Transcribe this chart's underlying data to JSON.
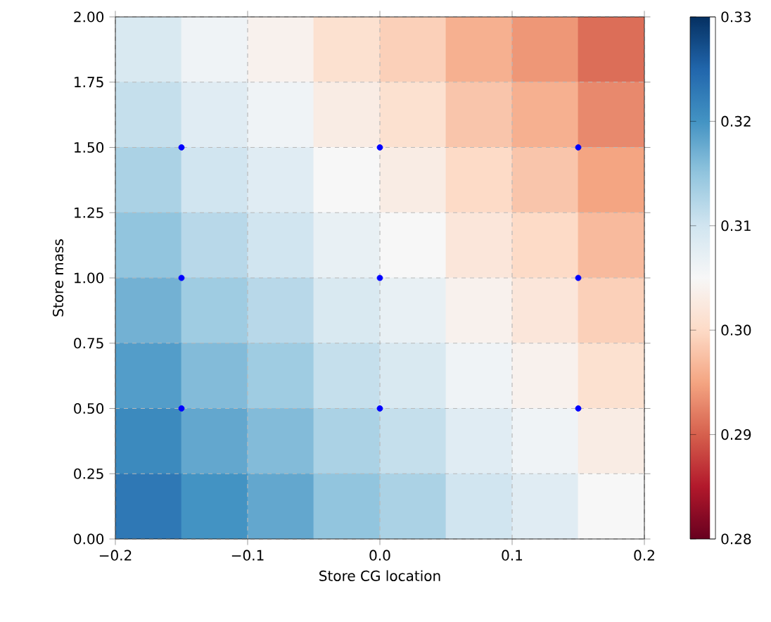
{
  "chart_data": [
    {
      "type": "heatmap",
      "categories": [
        null,
        null,
        null,
        null,
        null,
        null,
        null,
        null
      ],
      "y_categories": [
        null,
        null,
        null,
        null,
        null,
        null,
        null,
        null
      ],
      "cells": [
        [
          0.309,
          0.306,
          0.304,
          0.301,
          0.299,
          0.296,
          0.294,
          0.291
        ],
        [
          0.311,
          0.308,
          0.306,
          0.303,
          0.301,
          0.298,
          0.296,
          0.293
        ],
        [
          0.313,
          0.31,
          0.308,
          0.305,
          0.303,
          0.3,
          0.298,
          0.295
        ],
        [
          0.315,
          0.312,
          0.31,
          0.307,
          0.305,
          0.302,
          0.3,
          0.297
        ],
        [
          0.317,
          0.314,
          0.312,
          0.309,
          0.307,
          0.304,
          0.302,
          0.299
        ],
        [
          0.319,
          0.316,
          0.314,
          0.311,
          0.309,
          0.306,
          0.304,
          0.301
        ],
        [
          0.321,
          0.318,
          0.316,
          0.313,
          0.311,
          0.308,
          0.306,
          0.303
        ],
        [
          0.323,
          0.32,
          0.318,
          0.315,
          0.313,
          0.31,
          0.308,
          0.305
        ]
      ],
      "clim": [
        0.28,
        0.33
      ],
      "cticks": [
        {
          "value": 0.28,
          "label": "0.28"
        },
        {
          "value": 0.29,
          "label": "0.29"
        },
        {
          "value": 0.3,
          "label": "0.30"
        },
        {
          "value": 0.31,
          "label": "0.31"
        },
        {
          "value": 0.32,
          "label": "0.32"
        },
        {
          "value": 0.33,
          "label": "0.33"
        }
      ]
    },
    {
      "type": "scatter",
      "xlabel": "Store CG location",
      "ylabel": "Store mass",
      "xlim": [
        -0.2,
        0.2
      ],
      "xticks": [
        {
          "value": -0.2,
          "label": "−0.2"
        },
        {
          "value": -0.1,
          "label": "−0.1"
        },
        {
          "value": 0.0,
          "label": "0.0"
        },
        {
          "value": 0.1,
          "label": "0.1"
        },
        {
          "value": 0.2,
          "label": "0.2"
        }
      ],
      "ylim": [
        0,
        2
      ],
      "yticks": [
        {
          "value": 0,
          "label": "0.00"
        },
        {
          "value": 0.25,
          "label": "0.25"
        },
        {
          "value": 0.5,
          "label": "0.50"
        },
        {
          "value": 0.75,
          "label": "0.75"
        },
        {
          "value": 1.0,
          "label": "1.00"
        },
        {
          "value": 1.25,
          "label": "1.25"
        },
        {
          "value": 1.5,
          "label": "1.50"
        },
        {
          "value": 1.75,
          "label": "1.75"
        },
        {
          "value": 2.0,
          "label": "2.00"
        }
      ],
      "grid": true,
      "marker": "circle",
      "series": [
        {
          "color": "#0000ff",
          "x": [
            -0.15,
            -0.15,
            -0.15,
            0.0,
            0.0,
            0.0,
            0.15,
            0.15,
            0.15
          ],
          "values": [
            0.5,
            1.0,
            1.5,
            0.5,
            1.0,
            1.5,
            0.5,
            1.0,
            1.5
          ]
        }
      ]
    }
  ]
}
